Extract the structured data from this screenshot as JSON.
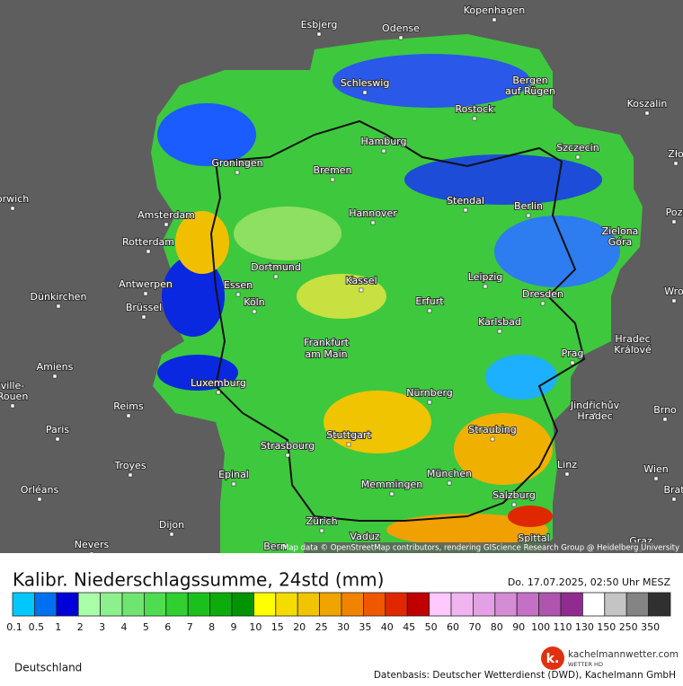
{
  "map": {
    "cities": [
      "Esbjerg",
      "Odense",
      "Kopenhagen",
      "Schleswig",
      "Bergen",
      "auf Rügen",
      "Rostock",
      "Koszalin",
      "Hamburg",
      "Szczecin",
      "Zło",
      "Groningen",
      "Bremen",
      "orwich",
      "Amsterdam",
      "Hannover",
      "Stendal",
      "Berlin",
      "Poz",
      "Zielona",
      "Góra",
      "Rotterdam",
      "Dortmund",
      "Leipzig",
      "Dünkirchen",
      "Antwerpen",
      "Essen",
      "Kassel",
      "Erfurt",
      "Dresden",
      "Wro",
      "Brüssel",
      "Köln",
      "Frankfurt",
      "am Main",
      "Karlsbad",
      "Hradec",
      "Králové",
      "Prag",
      "Amiens",
      "Luxemburg",
      "Nürnberg",
      "Jindřichův",
      "Hradec",
      "Brno",
      "Reims",
      "ville-",
      "Rouen",
      "Paris",
      "Stuttgart",
      "Straubing",
      "Strasbourg",
      "Troyes",
      "Epinal",
      "München",
      "Linz",
      "Wien",
      "Memmingen",
      "Salzburg",
      "Orléans",
      "Brat",
      "Dijon",
      "Zürich",
      "Vaduz",
      "Spittal",
      "Nevers",
      "Bern",
      "Graz"
    ],
    "attribution": "Map data © OpenStreetMap contributors, rendering GIScience Research Group @ Heidelberg University"
  },
  "legend": {
    "title": "Kalibr. Niederschlagssumme, 24std (mm)",
    "timestamp": "Do. 17.07.2025, 02:50 Uhr MESZ",
    "items": [
      {
        "label": "0.1",
        "color": "#00c8ff"
      },
      {
        "label": "0.5",
        "color": "#0070f0"
      },
      {
        "label": "1",
        "color": "#0000d8"
      },
      {
        "label": "2",
        "color": "#a8ffa8"
      },
      {
        "label": "3",
        "color": "#8cf08c"
      },
      {
        "label": "4",
        "color": "#70e470"
      },
      {
        "label": "5",
        "color": "#50dc50"
      },
      {
        "label": "6",
        "color": "#30d030"
      },
      {
        "label": "7",
        "color": "#1cc01c"
      },
      {
        "label": "8",
        "color": "#0cac0c"
      },
      {
        "label": "9",
        "color": "#009400"
      },
      {
        "label": "10",
        "color": "#ffff00"
      },
      {
        "label": "15",
        "color": "#f4dc00"
      },
      {
        "label": "20",
        "color": "#f0c400"
      },
      {
        "label": "25",
        "color": "#f0a400"
      },
      {
        "label": "30",
        "color": "#f08400"
      },
      {
        "label": "35",
        "color": "#f05800"
      },
      {
        "label": "40",
        "color": "#e02800"
      },
      {
        "label": "45",
        "color": "#c00000"
      },
      {
        "label": "50",
        "color": "#ffc8ff"
      },
      {
        "label": "60",
        "color": "#f0b4f0"
      },
      {
        "label": "70",
        "color": "#e4a0e4"
      },
      {
        "label": "80",
        "color": "#d48cd4"
      },
      {
        "label": "90",
        "color": "#c470c4"
      },
      {
        "label": "100",
        "color": "#b054b0"
      },
      {
        "label": "110",
        "color": "#902c90"
      },
      {
        "label": "130",
        "color": "#ffffff"
      },
      {
        "label": "150",
        "color": "#c4c4c4"
      },
      {
        "label": "250",
        "color": "#848484"
      },
      {
        "label": "350",
        "color": "#303030"
      }
    ]
  },
  "footer": {
    "region": "Deutschland",
    "brand": "kachelmannwetter.com",
    "brand_sub": "WETTER HD",
    "logo": "k.",
    "source": "Datenbasis: Deutscher Wetterdienst (DWD), Kachelmann GmbH"
  }
}
